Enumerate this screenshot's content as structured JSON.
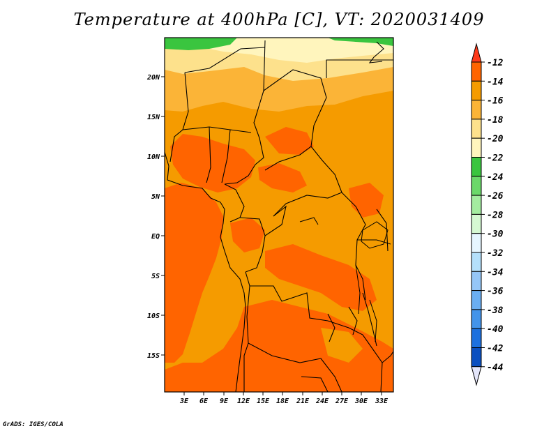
{
  "title": "Temperature at 400hPa [C], VT: 2020031409",
  "credit": "GrADS: IGES/COLA",
  "map": {
    "lat_ticks": [
      "20N",
      "15N",
      "10N",
      "5N",
      "EQ",
      "5S",
      "10S",
      "15S"
    ],
    "lon_ticks": [
      "3E",
      "6E",
      "9E",
      "12E",
      "15E",
      "18E",
      "21E",
      "24E",
      "27E",
      "30E",
      "33E"
    ],
    "colors": {
      "c_12_14": "#ff6400",
      "c_14_16": "#f59b00",
      "c_16_18": "#fbb437",
      "c_18_20": "#fde18c",
      "c_20_22": "#fff5bd",
      "c_22_24": "#3ac53f",
      "border": "#000000"
    }
  },
  "colorbar": {
    "labels": [
      "-12",
      "-14",
      "-16",
      "-18",
      "-20",
      "-22",
      "-24",
      "-26",
      "-28",
      "-30",
      "-32",
      "-34",
      "-36",
      "-38",
      "-40",
      "-42",
      "-44"
    ],
    "colors": [
      "#ff6400",
      "#f59b00",
      "#fbb437",
      "#fde18c",
      "#fff5bd",
      "#3ac53f",
      "#6bd86a",
      "#a4eca0",
      "#d5f8d2",
      "#e6f6ff",
      "#b4e0fb",
      "#95c6f7",
      "#6aaef2",
      "#4394ea",
      "#1c70de",
      "#0a4fc0",
      "#0e0e7a"
    ],
    "top_color": "#ff3a1a",
    "bottom_color": "#e4e6fa"
  }
}
